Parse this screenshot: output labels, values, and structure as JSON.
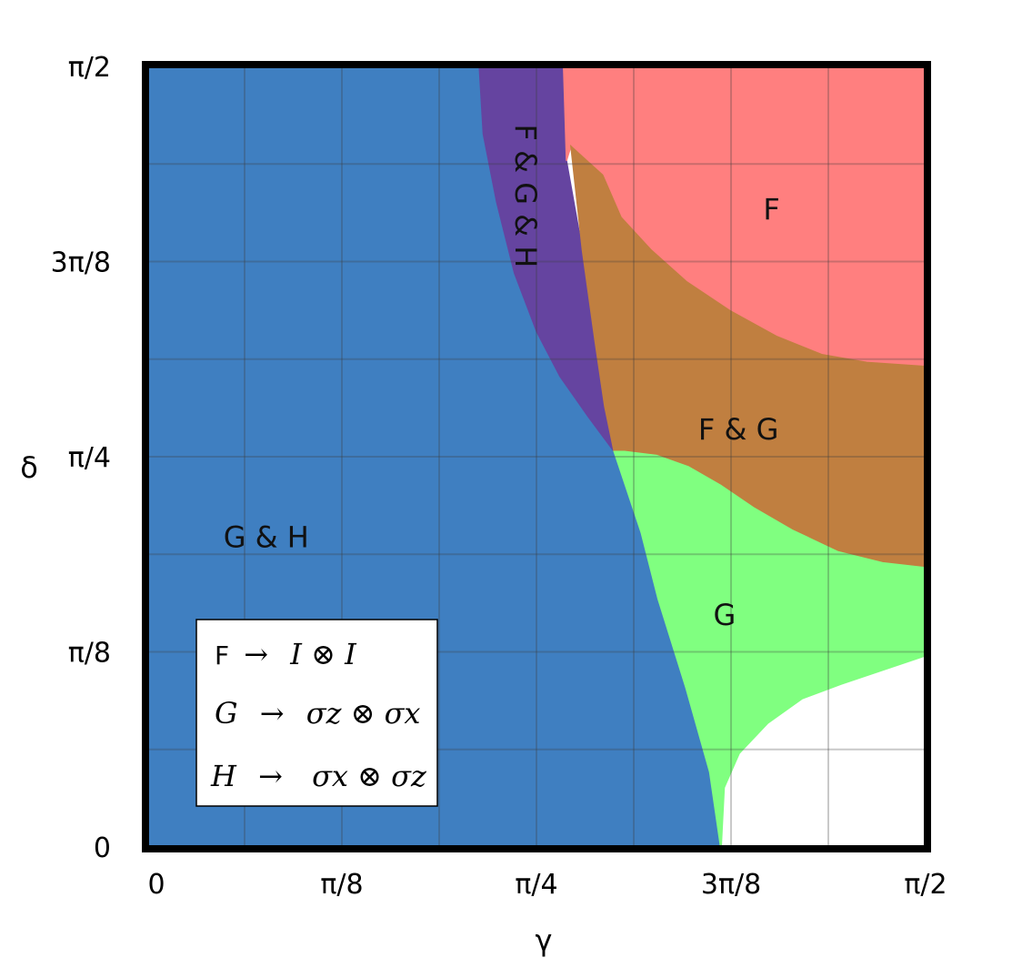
{
  "chart_data": {
    "type": "heatmap",
    "xlabel": "γ",
    "ylabel": "δ",
    "xlim": [
      0,
      1.5708
    ],
    "ylim": [
      0,
      1.5708
    ],
    "x_ticks": [
      {
        "value": 0,
        "label": "0"
      },
      {
        "value": 0.3927,
        "label": "π/8"
      },
      {
        "value": 0.7854,
        "label": "π/4"
      },
      {
        "value": 1.1781,
        "label": "3π/8"
      },
      {
        "value": 1.5708,
        "label": "π/2"
      }
    ],
    "y_ticks": [
      {
        "value": 0,
        "label": "0"
      },
      {
        "value": 0.3927,
        "label": "π/8"
      },
      {
        "value": 0.7854,
        "label": "π/4"
      },
      {
        "value": 1.1781,
        "label": "3π/8"
      },
      {
        "value": 1.5708,
        "label": "π/2"
      }
    ],
    "grid": true,
    "regions": [
      {
        "id": "gh",
        "label": "G & H",
        "color": "#3f7fc1",
        "label_at": [
          0.24,
          0.62
        ],
        "polygon": [
          [
            0,
            0
          ],
          [
            1.157,
            0
          ],
          [
            1.135,
            0.151
          ],
          [
            1.087,
            0.32
          ],
          [
            1.031,
            0.499
          ],
          [
            0.997,
            0.632
          ],
          [
            0.942,
            0.796
          ],
          [
            0.89,
            0.866
          ],
          [
            0.833,
            0.947
          ],
          [
            0.786,
            1.037
          ],
          [
            0.741,
            1.155
          ],
          [
            0.705,
            1.298
          ],
          [
            0.678,
            1.435
          ],
          [
            0.67,
            1.5708
          ],
          [
            0,
            1.5708
          ]
        ]
      },
      {
        "id": "fgh",
        "label": "F & G & H",
        "color": "#6544a0",
        "label_at": [
          0.76,
          1.31
        ],
        "label_rotate": 90,
        "polygon": [
          [
            0.67,
            1.5708
          ],
          [
            0.678,
            1.435
          ],
          [
            0.705,
            1.298
          ],
          [
            0.741,
            1.155
          ],
          [
            0.786,
            1.037
          ],
          [
            0.833,
            0.947
          ],
          [
            0.89,
            0.866
          ],
          [
            0.942,
            0.796
          ],
          [
            0.923,
            0.887
          ],
          [
            0.904,
            1.016
          ],
          [
            0.878,
            1.201
          ],
          [
            0.846,
            1.381
          ],
          [
            0.84,
            1.5708
          ]
        ]
      },
      {
        "id": "f",
        "label": "F",
        "color": "#ff7f7f",
        "label_at": [
          1.26,
          1.28
        ],
        "polygon": [
          [
            0.84,
            1.5708
          ],
          [
            1.5708,
            1.5708
          ],
          [
            1.5708,
            0.967
          ],
          [
            1.452,
            0.975
          ],
          [
            1.361,
            0.991
          ],
          [
            1.271,
            1.027
          ],
          [
            1.178,
            1.078
          ],
          [
            1.089,
            1.137
          ],
          [
            1.016,
            1.202
          ],
          [
            0.956,
            1.267
          ],
          [
            0.919,
            1.352
          ],
          [
            0.855,
            1.41
          ],
          [
            0.846,
            1.381
          ],
          [
            0.84,
            1.5708
          ]
        ]
      },
      {
        "id": "fg",
        "label": "F & G",
        "color": "#c07f40",
        "label_at": [
          1.193,
          0.837
        ],
        "polygon": [
          [
            0.942,
            0.796
          ],
          [
            0.923,
            0.887
          ],
          [
            0.904,
            1.016
          ],
          [
            0.878,
            1.201
          ],
          [
            0.855,
            1.41
          ],
          [
            0.919,
            1.352
          ],
          [
            0.956,
            1.267
          ],
          [
            1.016,
            1.202
          ],
          [
            1.089,
            1.137
          ],
          [
            1.178,
            1.078
          ],
          [
            1.271,
            1.027
          ],
          [
            1.361,
            0.991
          ],
          [
            1.452,
            0.975
          ],
          [
            1.5708,
            0.967
          ],
          [
            1.5708,
            0.562
          ],
          [
            1.484,
            0.572
          ],
          [
            1.394,
            0.594
          ],
          [
            1.301,
            0.638
          ],
          [
            1.223,
            0.683
          ],
          [
            1.157,
            0.728
          ],
          [
            1.092,
            0.765
          ],
          [
            1.028,
            0.788
          ],
          [
            0.963,
            0.796
          ],
          [
            0.942,
            0.796
          ]
        ]
      },
      {
        "id": "g",
        "label": "G",
        "color": "#80ff80",
        "label_at": [
          1.165,
          0.463
        ],
        "polygon": [
          [
            0.942,
            0.796
          ],
          [
            0.997,
            0.632
          ],
          [
            1.031,
            0.499
          ],
          [
            1.087,
            0.32
          ],
          [
            1.135,
            0.151
          ],
          [
            1.157,
            0
          ],
          [
            1.161,
            0
          ],
          [
            1.167,
            0.119
          ],
          [
            1.197,
            0.187
          ],
          [
            1.254,
            0.247
          ],
          [
            1.323,
            0.296
          ],
          [
            1.401,
            0.325
          ],
          [
            1.5708,
            0.382
          ],
          [
            1.5708,
            0.562
          ],
          [
            1.484,
            0.572
          ],
          [
            1.394,
            0.594
          ],
          [
            1.301,
            0.638
          ],
          [
            1.223,
            0.683
          ],
          [
            1.157,
            0.728
          ],
          [
            1.092,
            0.765
          ],
          [
            1.028,
            0.788
          ],
          [
            0.963,
            0.796
          ],
          [
            0.942,
            0.796
          ]
        ]
      },
      {
        "id": "none",
        "label": "",
        "color": "#ffffff",
        "polygon": [
          [
            1.161,
            0
          ],
          [
            1.5708,
            0
          ],
          [
            1.5708,
            0.382
          ],
          [
            1.401,
            0.325
          ],
          [
            1.323,
            0.296
          ],
          [
            1.254,
            0.247
          ],
          [
            1.197,
            0.187
          ],
          [
            1.167,
            0.119
          ],
          [
            1.161,
            0
          ]
        ]
      }
    ],
    "legend": {
      "placement": "bottom-left",
      "entries": [
        {
          "lhs": "F",
          "op": "→",
          "rhs": "I ⊗ I"
        },
        {
          "lhs": "G",
          "op": "→",
          "rhs": "σz ⊗ σx"
        },
        {
          "lhs": "H",
          "op": "→",
          "rhs": "σx ⊗ σz"
        }
      ]
    }
  }
}
